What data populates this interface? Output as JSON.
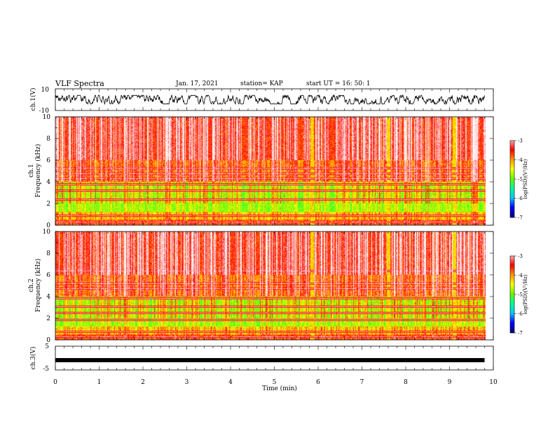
{
  "header": {
    "title": "VLF Spectra",
    "date": "Jan. 17, 2021",
    "station": "station= KAP",
    "start": "start UT =  16: 50: 1"
  },
  "chart_data": [
    {
      "type": "line",
      "name": "ch1-waveform",
      "ylabel": "ch.1(V)",
      "ylim": [
        -10,
        10
      ],
      "yticks": [
        "10",
        "-10"
      ],
      "x_range_min": [
        0,
        9.8
      ],
      "values_approx_range": [
        -4,
        4
      ]
    },
    {
      "type": "heatmap",
      "name": "ch1-spectrogram",
      "ylabel_line1": "ch.1",
      "ylabel_line2": "Frequency (kHz)",
      "ylim": [
        0,
        10
      ],
      "yticks": [
        "10",
        "8",
        "6",
        "4",
        "2",
        "0"
      ],
      "x_range_min": [
        0,
        9.8
      ],
      "colorbar": {
        "label": "log(PSD)(V²/Hz)",
        "range": [
          -7,
          -3
        ],
        "ticks": [
          "-3",
          "-4",
          "-5",
          "-6",
          "-7"
        ]
      },
      "horizontal_lines_khz": [
        5.3,
        4.8,
        4.3,
        3.8,
        3.2,
        2.4,
        0.9,
        0.3
      ],
      "vertical_features_min": [
        5.85,
        7.6,
        9.1
      ]
    },
    {
      "type": "heatmap",
      "name": "ch2-spectrogram",
      "ylabel_line1": "ch.2",
      "ylabel_line2": "Frequency (kHz)",
      "ylim": [
        0,
        10
      ],
      "yticks": [
        "10",
        "8",
        "6",
        "4",
        "2",
        "0"
      ],
      "x_range_min": [
        0,
        9.8
      ],
      "colorbar": {
        "label": "log(PSD)(V²/Hz)",
        "range": [
          -7,
          -3
        ],
        "ticks": [
          "-3",
          "-4",
          "-5",
          "-6",
          "-7"
        ]
      },
      "horizontal_lines_khz": [
        6.4,
        5.2,
        4.8,
        3.9,
        3.1,
        2.5,
        1.9,
        0.8,
        0.3
      ],
      "vertical_features_min": [
        5.85,
        7.6,
        9.1
      ]
    },
    {
      "type": "line",
      "name": "ch3-waveform",
      "ylabel": "ch.3(V)",
      "ylim": [
        -5,
        5
      ],
      "yticks": [
        "5",
        "-5"
      ],
      "x_range_min": [
        0,
        9.8
      ],
      "values_approx_range": [
        -1.2,
        -0.6
      ]
    }
  ],
  "xaxis": {
    "label": "Time (min)",
    "ticks": [
      "0",
      "1",
      "2",
      "3",
      "4",
      "5",
      "6",
      "7",
      "8",
      "9",
      "10"
    ],
    "range": [
      0,
      10
    ]
  },
  "colors": {
    "scale": [
      "#000080",
      "#0000ff",
      "#00c8ff",
      "#00ff96",
      "#64ff00",
      "#ffff00",
      "#ff9600",
      "#ff0000",
      "#ffb4b4",
      "#ffffff"
    ]
  }
}
